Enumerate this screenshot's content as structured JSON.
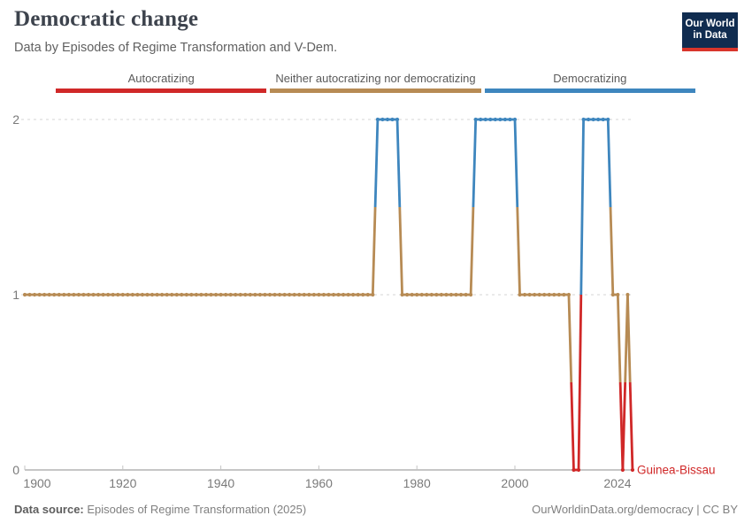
{
  "header": {
    "title": "Democratic change",
    "subtitle": "Data by Episodes of Regime Transformation and V-Dem.",
    "logo": {
      "line1": "Our World",
      "line2": "in Data",
      "bg": "#102c50",
      "accent": "#d8352b"
    }
  },
  "legend": {
    "items": [
      {
        "label": "Autocratizing",
        "color": "#d02828"
      },
      {
        "label": "Neither autocratizing nor democratizing",
        "color": "#b78b54"
      },
      {
        "label": "Democratizing",
        "color": "#3e86be"
      }
    ]
  },
  "chart_data": {
    "type": "line",
    "title": "Democratic change",
    "entity_label": "Guinea-Bissau",
    "x_ticks": [
      1900,
      1920,
      1940,
      1960,
      1980,
      2000,
      2024
    ],
    "y_ticks": [
      0,
      1,
      2
    ],
    "x_range": [
      1900,
      2024
    ],
    "ylim": [
      0,
      2
    ],
    "grid": "dashed-horizontal",
    "legend_position": "top",
    "categories": {
      "0": "Autocratizing",
      "1": "Neither autocratizing nor democratizing",
      "2": "Democratizing"
    },
    "colors": {
      "0": "#d02828",
      "1": "#b78b54",
      "2": "#3e86be",
      "label": "#d02828"
    },
    "segments": [
      {
        "start": 1900,
        "end": 1971,
        "value": 1
      },
      {
        "start": 1972,
        "end": 1976,
        "value": 2
      },
      {
        "start": 1977,
        "end": 1991,
        "value": 1
      },
      {
        "start": 1992,
        "end": 2000,
        "value": 2
      },
      {
        "start": 2001,
        "end": 2011,
        "value": 1
      },
      {
        "start": 2012,
        "end": 2013,
        "value": 0
      },
      {
        "start": 2014,
        "end": 2019,
        "value": 2
      },
      {
        "start": 2020,
        "end": 2021,
        "value": 1
      },
      {
        "start": 2022,
        "end": 2022,
        "value": 0
      },
      {
        "start": 2023,
        "end": 2023,
        "value": 1
      },
      {
        "start": 2024,
        "end": 2024,
        "value": 0
      }
    ]
  },
  "footer": {
    "source_label": "Data source:",
    "source_name": " Episodes of Regime Transformation (2025)",
    "credit": "OurWorldinData.org/democracy | CC BY"
  }
}
